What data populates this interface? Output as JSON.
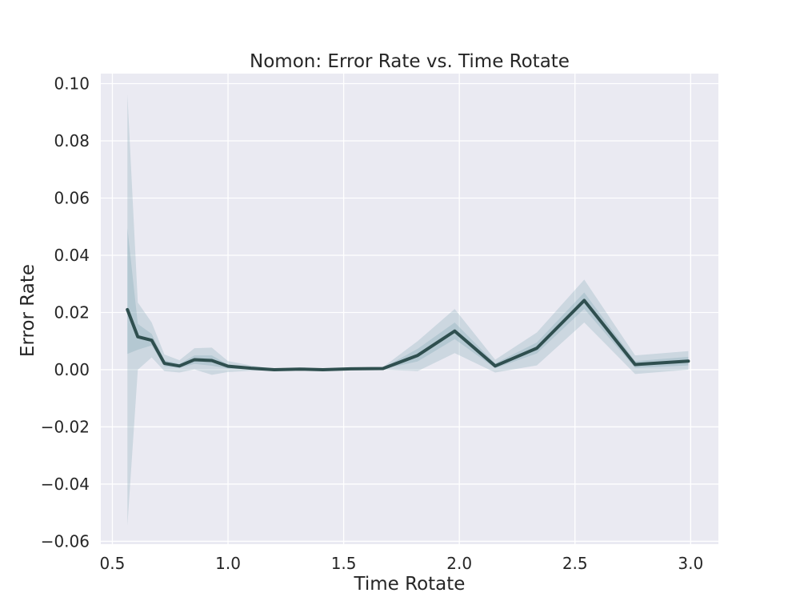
{
  "chart_data": {
    "type": "line",
    "title": "Nomon: Error Rate vs. Time Rotate",
    "xlabel": "Time Rotate",
    "ylabel": "Error Rate",
    "xlim": [
      0.45,
      3.12
    ],
    "ylim": [
      -0.061,
      0.1035
    ],
    "xticks": [
      0.5,
      1.0,
      1.5,
      2.0,
      2.5,
      3.0
    ],
    "xtick_labels": [
      "0.5",
      "1.0",
      "1.5",
      "2.0",
      "2.5",
      "3.0"
    ],
    "yticks": [
      -0.06,
      -0.04,
      -0.02,
      0.0,
      0.02,
      0.04,
      0.06,
      0.08,
      0.1
    ],
    "ytick_labels": [
      "−0.06",
      "−0.04",
      "−0.02",
      "0.00",
      "0.02",
      "0.04",
      "0.06",
      "0.08",
      "0.10"
    ],
    "grid": true,
    "series": [
      {
        "x": [
          0.565,
          0.61,
          0.67,
          0.725,
          0.79,
          0.855,
          0.93,
          1.0,
          1.1,
          1.2,
          1.31,
          1.41,
          1.53,
          1.67,
          1.82,
          1.98,
          2.155,
          2.335,
          2.54,
          2.76,
          2.99
        ],
        "y": [
          0.021,
          0.0115,
          0.0103,
          0.0022,
          0.0013,
          0.0035,
          0.0032,
          0.0012,
          0.0005,
          0.0,
          0.0002,
          0.0,
          0.0003,
          0.0004,
          0.005,
          0.0135,
          0.0013,
          0.0075,
          0.0242,
          0.0018,
          0.003
        ],
        "ci_outer_upper": [
          0.0962,
          0.0235,
          0.0165,
          0.0053,
          0.0033,
          0.0075,
          0.0077,
          0.003,
          0.0015,
          0.0003,
          0.0007,
          0.0003,
          0.0008,
          0.0009,
          0.01,
          0.0212,
          0.0035,
          0.013,
          0.0315,
          0.005,
          0.0065
        ],
        "ci_outer_lower": [
          -0.0545,
          0.0,
          0.0043,
          -0.0005,
          -0.001,
          0.0001,
          -0.0018,
          -0.0008,
          -0.0004,
          -0.0003,
          -0.0002,
          -0.0003,
          -0.0002,
          0.0,
          -0.0005,
          0.0058,
          -0.001,
          0.0015,
          0.0165,
          -0.0015,
          0.0
        ],
        "ci_inner_upper": [
          0.0495,
          0.016,
          0.0125,
          0.0033,
          0.002,
          0.005,
          0.005,
          0.0018,
          0.0009,
          0.0001,
          0.0004,
          0.0001,
          0.0005,
          0.0006,
          0.0073,
          0.0165,
          0.0022,
          0.0095,
          0.027,
          0.003,
          0.0045
        ],
        "ci_inner_lower": [
          0.0055,
          0.007,
          0.0085,
          0.0012,
          0.0006,
          0.002,
          0.0014,
          0.0004,
          0.0001,
          -0.0001,
          0.0,
          -0.0001,
          0.0001,
          0.0002,
          0.0029,
          0.0107,
          0.0005,
          0.0057,
          0.0213,
          0.0006,
          0.0015
        ]
      }
    ]
  },
  "colors": {
    "background": "#ffffff",
    "plot_background": "#eaeaf2",
    "grid": "#ffffff",
    "line": "#2f4f4f",
    "ci_fill": "#7fa7b3",
    "text": "#262626"
  }
}
